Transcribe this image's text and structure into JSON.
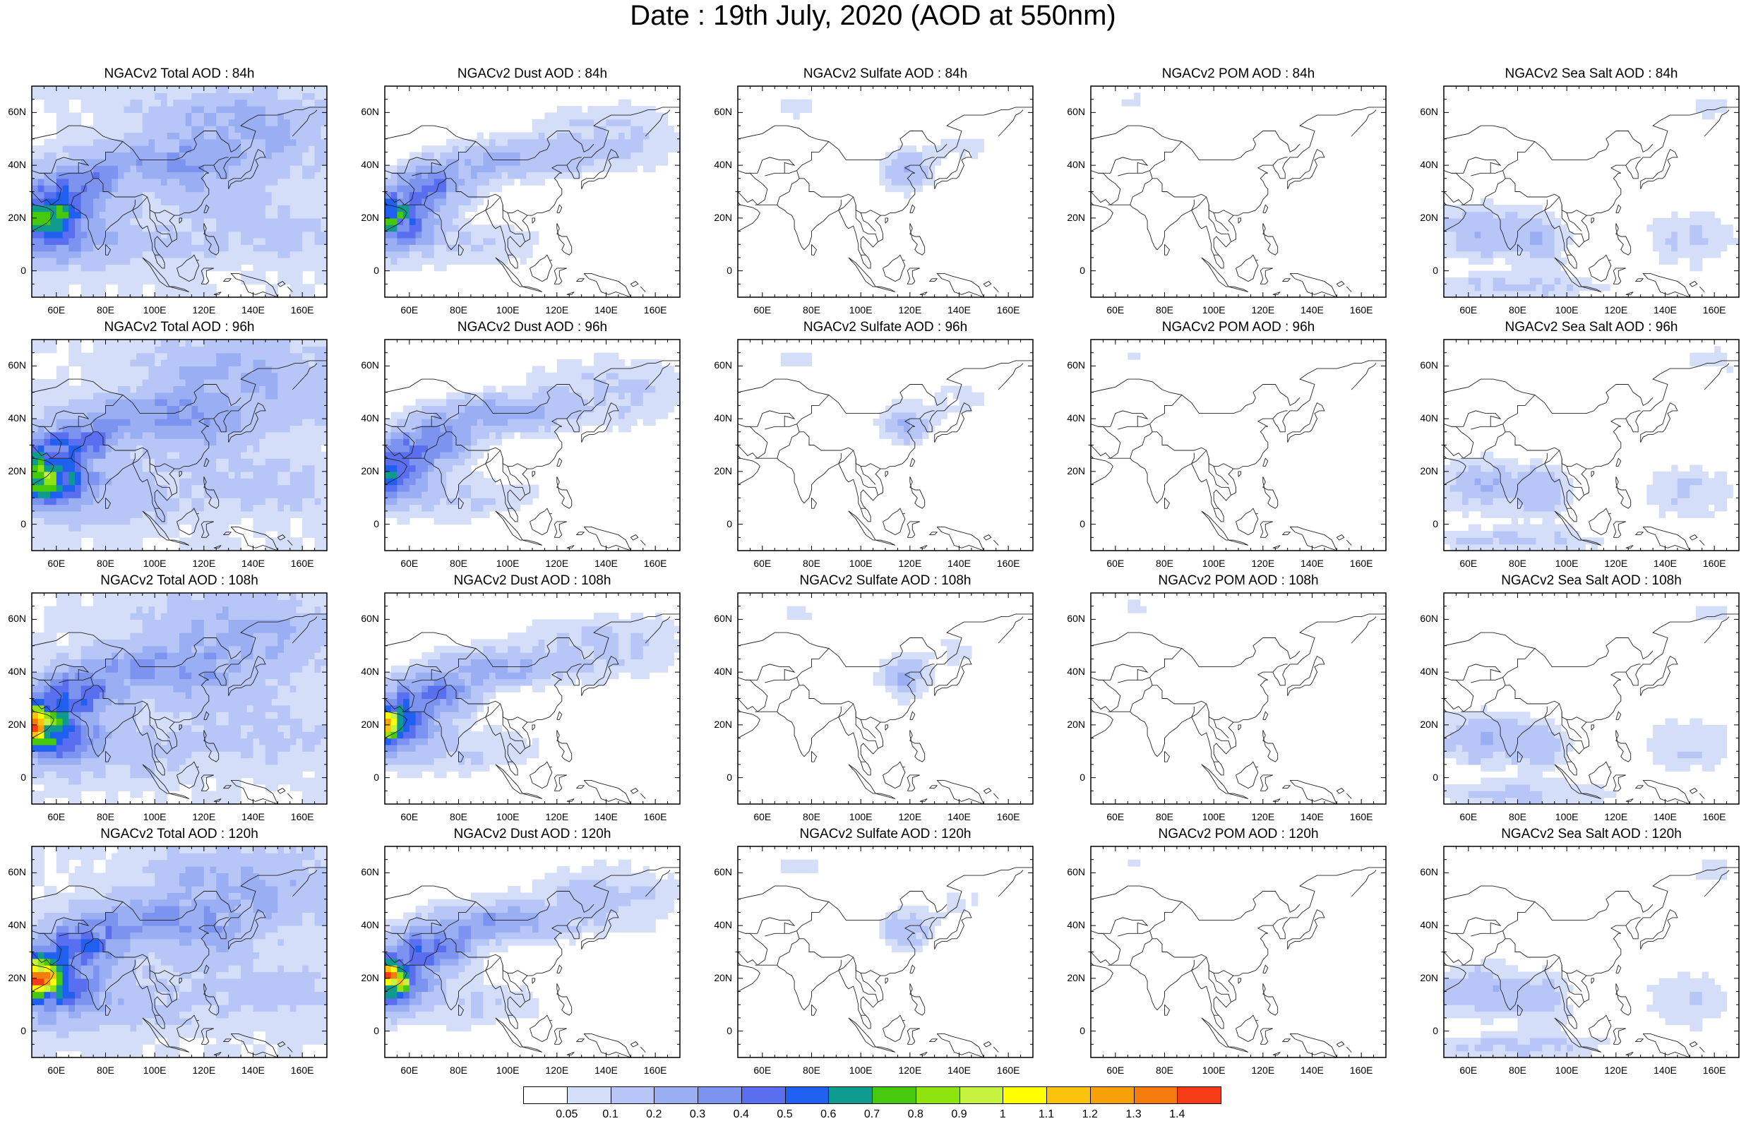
{
  "title": "Date : 19th July, 2020 (AOD at 550nm)",
  "lat_ticks": [
    "60N",
    "40N",
    "20N",
    "0"
  ],
  "lon_ticks": [
    "60E",
    "80E",
    "100E",
    "120E",
    "140E",
    "160E"
  ],
  "map_extent": {
    "lon": [
      50,
      170
    ],
    "lat": [
      -10,
      70
    ]
  },
  "colorbar": {
    "labels": [
      "0.05",
      "0.1",
      "0.2",
      "0.3",
      "0.4",
      "0.5",
      "0.6",
      "0.7",
      "0.8",
      "0.9",
      "1",
      "1.1",
      "1.2",
      "1.3",
      "1.4"
    ],
    "colors": [
      "#ffffff",
      "#d5def9",
      "#b7c6f6",
      "#9aaff3",
      "#7c94ef",
      "#5a6ff0",
      "#1f60f0",
      "#0e9a8f",
      "#46c80c",
      "#8fe30e",
      "#c6f240",
      "#ffff00",
      "#f9c20c",
      "#f8a00a",
      "#f67b0f",
      "#f53a16"
    ]
  },
  "panels": [
    {
      "title": "NGACv2 Total AOD : 84h",
      "type": "total"
    },
    {
      "title": "NGACv2 Dust AOD : 84h",
      "type": "dust"
    },
    {
      "title": "NGACv2 Sulfate AOD : 84h",
      "type": "sulfate"
    },
    {
      "title": "NGACv2 POM AOD : 84h",
      "type": "pom"
    },
    {
      "title": "NGACv2 Sea Salt AOD : 84h",
      "type": "seasalt"
    },
    {
      "title": "NGACv2 Total AOD : 96h",
      "type": "total"
    },
    {
      "title": "NGACv2 Dust AOD : 96h",
      "type": "dust"
    },
    {
      "title": "NGACv2 Sulfate AOD : 96h",
      "type": "sulfate"
    },
    {
      "title": "NGACv2 POM AOD : 96h",
      "type": "pom"
    },
    {
      "title": "NGACv2 Sea Salt AOD : 96h",
      "type": "seasalt"
    },
    {
      "title": "NGACv2 Total AOD : 108h",
      "type": "total"
    },
    {
      "title": "NGACv2 Dust AOD : 108h",
      "type": "dust"
    },
    {
      "title": "NGACv2 Sulfate AOD : 108h",
      "type": "sulfate"
    },
    {
      "title": "NGACv2 POM AOD : 108h",
      "type": "pom"
    },
    {
      "title": "NGACv2 Sea Salt AOD : 108h",
      "type": "seasalt"
    },
    {
      "title": "NGACv2 Total AOD : 120h",
      "type": "total"
    },
    {
      "title": "NGACv2 Dust AOD : 120h",
      "type": "dust"
    },
    {
      "title": "NGACv2 Sulfate AOD : 120h",
      "type": "sulfate"
    },
    {
      "title": "NGACv2 POM AOD : 120h",
      "type": "pom"
    },
    {
      "title": "NGACv2 Sea Salt  AOD : 120h",
      "type": "seasalt"
    }
  ]
}
